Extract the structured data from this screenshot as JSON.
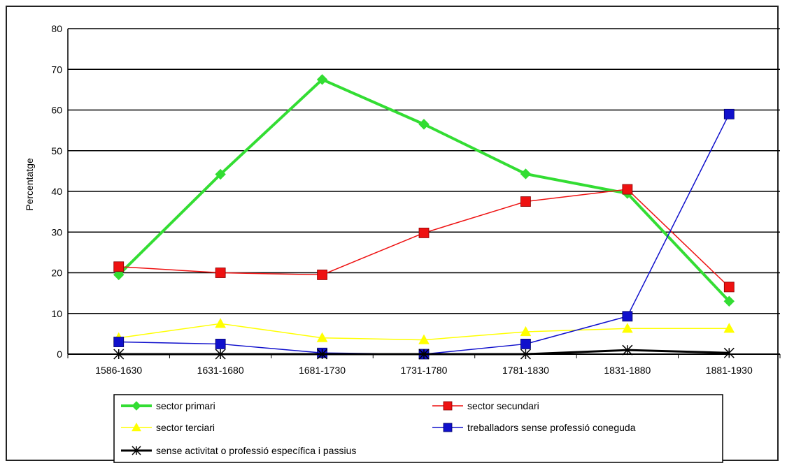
{
  "chart_data": {
    "type": "line",
    "ylabel": "Percentatge",
    "ylim": [
      0,
      80
    ],
    "yticks": [
      0,
      10,
      20,
      30,
      40,
      50,
      60,
      70,
      80
    ],
    "grid": true,
    "legend_position": "bottom",
    "categories": [
      "1586-1630",
      "1631-1680",
      "1681-1730",
      "1731-1780",
      "1781-1830",
      "1831-1880",
      "1881-1930"
    ],
    "series": [
      {
        "name": "sector primari",
        "color": "#33dd33",
        "marker": "diamond",
        "values": [
          19.5,
          44.2,
          67.5,
          56.5,
          44.3,
          39.5,
          13.0
        ]
      },
      {
        "name": "sector secundari",
        "color": "#ee1111",
        "marker": "square",
        "values": [
          21.5,
          20.0,
          19.5,
          29.8,
          37.5,
          40.5,
          16.5
        ]
      },
      {
        "name": "sector terciari",
        "color": "#ffff00",
        "marker": "triangle",
        "values": [
          4.0,
          7.5,
          4.0,
          3.5,
          5.5,
          6.3,
          6.3
        ]
      },
      {
        "name": "treballadors sense professió coneguda",
        "color": "#1010cc",
        "marker": "square",
        "values": [
          3.0,
          2.5,
          0.3,
          0.0,
          2.5,
          9.3,
          59.0
        ]
      },
      {
        "name": "sense activitat o professió específica i passius",
        "color": "#000000",
        "marker": "star",
        "values": [
          0.0,
          0.0,
          0.0,
          0.0,
          0.0,
          1.0,
          0.3
        ]
      }
    ]
  }
}
